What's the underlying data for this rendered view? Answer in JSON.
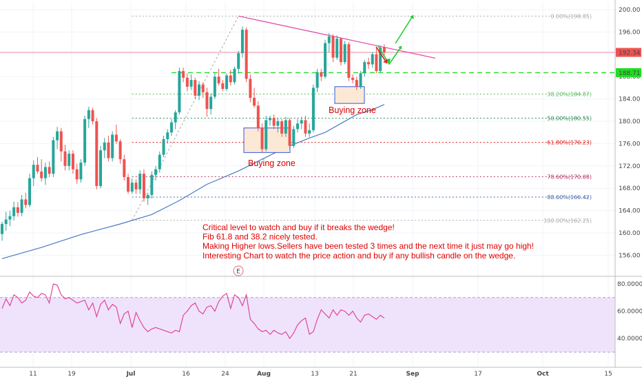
{
  "chart_data": {
    "type": "candlestick",
    "price_axis": {
      "ticks": [
        156,
        160,
        164,
        168,
        172,
        176,
        180,
        184,
        188,
        192,
        196,
        200
      ],
      "range": [
        153,
        202
      ]
    },
    "x_axis": {
      "ticks": [
        "11",
        "19",
        "Jul",
        "16",
        "24",
        "Aug",
        "13",
        "21",
        "Sep",
        "17",
        "Oct",
        "15"
      ]
    },
    "last_price": "192.34",
    "level_tag": "188.71",
    "ohlc": [
      [
        159.8,
        162.0,
        158.6,
        161.6
      ],
      [
        161.6,
        163.8,
        160.4,
        162.4
      ],
      [
        162.4,
        164.0,
        161.2,
        163.0
      ],
      [
        163.0,
        165.6,
        162.2,
        164.6
      ],
      [
        164.6,
        165.5,
        162.9,
        163.6
      ],
      [
        163.6,
        166.8,
        163.0,
        166.0
      ],
      [
        166.0,
        167.2,
        164.4,
        165.0
      ],
      [
        165.0,
        170.6,
        164.6,
        169.8
      ],
      [
        169.8,
        173.0,
        168.4,
        172.2
      ],
      [
        172.2,
        173.6,
        170.6,
        171.0
      ],
      [
        171.0,
        173.2,
        169.2,
        169.8
      ],
      [
        169.8,
        172.6,
        168.6,
        171.8
      ],
      [
        171.8,
        172.8,
        170.0,
        170.6
      ],
      [
        170.6,
        177.2,
        170.0,
        176.6
      ],
      [
        176.6,
        179.0,
        175.0,
        178.2
      ],
      [
        178.2,
        178.8,
        172.8,
        174.6
      ],
      [
        174.6,
        175.8,
        171.2,
        172.0
      ],
      [
        172.0,
        174.8,
        171.2,
        174.2
      ],
      [
        174.2,
        174.8,
        170.6,
        171.4
      ],
      [
        171.4,
        172.4,
        168.8,
        169.6
      ],
      [
        169.6,
        173.2,
        169.0,
        172.6
      ],
      [
        172.6,
        181.0,
        172.0,
        180.4
      ],
      [
        180.4,
        182.6,
        178.8,
        182.0
      ],
      [
        182.0,
        182.4,
        179.4,
        180.0
      ],
      [
        180.0,
        180.6,
        167.8,
        168.4
      ],
      [
        168.4,
        175.6,
        168.0,
        174.8
      ],
      [
        174.8,
        177.0,
        173.4,
        176.2
      ],
      [
        176.2,
        177.4,
        172.8,
        173.4
      ],
      [
        173.4,
        178.2,
        172.8,
        177.6
      ],
      [
        177.6,
        179.4,
        176.0,
        176.4
      ],
      [
        176.4,
        176.8,
        172.4,
        173.2
      ],
      [
        173.2,
        174.0,
        169.4,
        170.0
      ],
      [
        170.0,
        170.6,
        167.0,
        167.4
      ],
      [
        167.4,
        169.8,
        167.0,
        169.0
      ],
      [
        169.0,
        169.6,
        167.0,
        167.8
      ],
      [
        167.8,
        171.2,
        167.0,
        170.6
      ],
      [
        170.6,
        171.4,
        165.6,
        166.2
      ],
      [
        166.2,
        167.2,
        165.0,
        166.8
      ],
      [
        166.8,
        171.0,
        166.2,
        170.4
      ],
      [
        170.4,
        172.0,
        169.4,
        171.4
      ],
      [
        171.4,
        174.6,
        170.8,
        174.0
      ],
      [
        174.0,
        177.4,
        173.6,
        176.8
      ],
      [
        176.8,
        178.6,
        176.0,
        178.0
      ],
      [
        178.0,
        180.4,
        177.4,
        179.8
      ],
      [
        179.8,
        182.0,
        178.6,
        181.6
      ],
      [
        181.6,
        189.6,
        181.2,
        189.0
      ],
      [
        189.0,
        189.6,
        187.0,
        187.8
      ],
      [
        187.8,
        188.6,
        185.4,
        186.2
      ],
      [
        186.2,
        188.4,
        185.6,
        187.4
      ],
      [
        187.4,
        187.8,
        184.0,
        184.6
      ],
      [
        184.6,
        187.2,
        183.8,
        186.6
      ],
      [
        186.6,
        187.0,
        184.2,
        185.2
      ],
      [
        185.2,
        186.0,
        180.8,
        182.2
      ],
      [
        182.2,
        185.0,
        181.2,
        184.4
      ],
      [
        184.4,
        188.8,
        184.0,
        188.0
      ],
      [
        188.0,
        189.4,
        186.4,
        186.8
      ],
      [
        186.8,
        187.4,
        185.4,
        185.8
      ],
      [
        185.8,
        188.6,
        185.4,
        188.2
      ],
      [
        188.2,
        189.2,
        186.4,
        187.0
      ],
      [
        187.0,
        189.8,
        186.6,
        189.4
      ],
      [
        189.4,
        192.6,
        188.6,
        192.2
      ],
      [
        192.2,
        197.0,
        191.4,
        196.4
      ],
      [
        196.4,
        196.8,
        187.0,
        187.6
      ],
      [
        187.6,
        188.4,
        183.4,
        184.2
      ],
      [
        184.2,
        186.0,
        182.4,
        182.8
      ],
      [
        182.8,
        183.6,
        178.2,
        178.8
      ],
      [
        178.8,
        179.6,
        174.4,
        175.0
      ],
      [
        175.0,
        181.0,
        174.6,
        180.2
      ],
      [
        180.2,
        181.0,
        179.2,
        180.6
      ],
      [
        180.6,
        181.2,
        178.6,
        179.2
      ],
      [
        179.2,
        180.6,
        178.0,
        180.0
      ],
      [
        180.0,
        180.4,
        177.2,
        177.8
      ],
      [
        177.8,
        180.8,
        177.2,
        180.2
      ],
      [
        180.2,
        180.6,
        175.0,
        175.6
      ],
      [
        175.6,
        179.2,
        175.2,
        178.6
      ],
      [
        178.6,
        180.4,
        178.0,
        179.6
      ],
      [
        179.6,
        180.8,
        178.6,
        180.2
      ],
      [
        180.2,
        181.0,
        177.2,
        177.8
      ],
      [
        177.8,
        179.6,
        177.2,
        178.4
      ],
      [
        178.4,
        186.6,
        178.0,
        186.0
      ],
      [
        186.0,
        189.4,
        185.2,
        188.8
      ],
      [
        188.8,
        189.4,
        187.2,
        188.0
      ],
      [
        188.0,
        194.6,
        187.6,
        194.0
      ],
      [
        194.0,
        195.8,
        192.4,
        195.2
      ],
      [
        195.2,
        195.6,
        190.6,
        191.4
      ],
      [
        191.4,
        195.4,
        191.0,
        194.8
      ],
      [
        194.8,
        195.0,
        190.0,
        190.6
      ],
      [
        190.6,
        194.4,
        190.2,
        193.8
      ],
      [
        193.8,
        194.2,
        187.2,
        187.8
      ],
      [
        187.8,
        188.4,
        186.8,
        187.4
      ],
      [
        187.4,
        188.0,
        185.6,
        186.2
      ],
      [
        186.2,
        189.0,
        185.8,
        188.6
      ],
      [
        188.6,
        191.0,
        188.0,
        190.6
      ],
      [
        190.6,
        191.4,
        189.4,
        190.2
      ],
      [
        190.2,
        192.4,
        189.6,
        192.0
      ],
      [
        192.0,
        193.2,
        188.6,
        189.0
      ],
      [
        189.0,
        193.6,
        188.8,
        193.2
      ],
      [
        193.2,
        193.8,
        191.8,
        192.34
      ]
    ],
    "ma": [
      [
        0,
        155.4
      ],
      [
        10,
        157.4
      ],
      [
        20,
        159.7
      ],
      [
        30,
        161.6
      ],
      [
        38,
        163.3
      ],
      [
        45,
        165.8
      ],
      [
        52,
        168.7
      ],
      [
        60,
        171.1
      ],
      [
        66,
        173.2
      ],
      [
        72,
        175.3
      ],
      [
        78,
        177.0
      ],
      [
        82,
        178.0
      ],
      [
        86,
        179.6
      ],
      [
        90,
        181.2
      ],
      [
        94,
        182.1
      ],
      [
        97,
        183.0
      ]
    ],
    "fib": [
      {
        "label": "0.00%(198.85)",
        "value": 198.85,
        "color": "#aaaaaa"
      },
      {
        "label": "38.20%(184.87)",
        "value": 184.87,
        "color": "#5cb85c"
      },
      {
        "label": "50.00%(180.55)",
        "value": 180.55,
        "color": "#2e8b57"
      },
      {
        "label": "61.80%(176.23)",
        "value": 176.23,
        "color": "#e02020"
      },
      {
        "label": "78.60%(170.08)",
        "value": 170.08,
        "color": "#b03060"
      },
      {
        "label": "88.60%(166.42)",
        "value": 166.42,
        "color": "#4466aa"
      },
      {
        "label": "100.00%(162.25)",
        "value": 162.25,
        "color": "#aaaaaa"
      }
    ],
    "rsi": {
      "ticks": [
        "80.0000",
        "60.0000",
        "40.0000"
      ],
      "upper": 70,
      "lower": 30,
      "values": [
        62,
        69,
        64,
        72,
        70,
        66,
        68,
        74,
        71,
        70,
        73,
        72,
        66,
        80,
        79,
        72,
        69,
        70,
        68,
        66,
        67,
        68,
        61,
        66,
        56,
        65,
        68,
        61,
        65,
        63,
        51,
        58,
        60,
        48,
        59,
        53,
        48,
        45,
        47,
        48,
        47,
        46,
        45,
        44,
        46,
        45,
        57,
        60,
        64,
        66,
        60,
        58,
        63,
        64,
        60,
        67,
        71,
        73,
        62,
        72,
        70,
        64,
        72,
        54,
        51,
        47,
        45,
        46,
        43,
        46,
        44,
        43,
        45,
        40,
        44,
        50,
        53,
        55,
        43,
        45,
        54,
        61,
        58,
        55,
        61,
        57,
        61,
        60,
        57,
        60,
        55,
        52,
        57,
        58,
        56,
        54,
        57,
        55
      ]
    },
    "annotations": {
      "text_lines": [
        "Critical level to watch and buy if it breaks the wedge!",
        "Fib 61.8 and 38.2 nicely tested.",
        "Making Higher lows.Sellers have been tested 3 times and the next time it just may go high!",
        "Interesting Chart to watch the price action and buy if any bullish candle on the wedge."
      ],
      "zone1": "Buying zone",
      "zone2": "Buying zone",
      "earnings": "E"
    },
    "colors": {
      "up": "#26a69a",
      "down": "#ef5350",
      "ma": "#4a78c2",
      "trend": "#e040a0",
      "level": "#22dd22",
      "rsi_fill": "#efe3fb",
      "rsi_line": "#e0459a"
    }
  }
}
